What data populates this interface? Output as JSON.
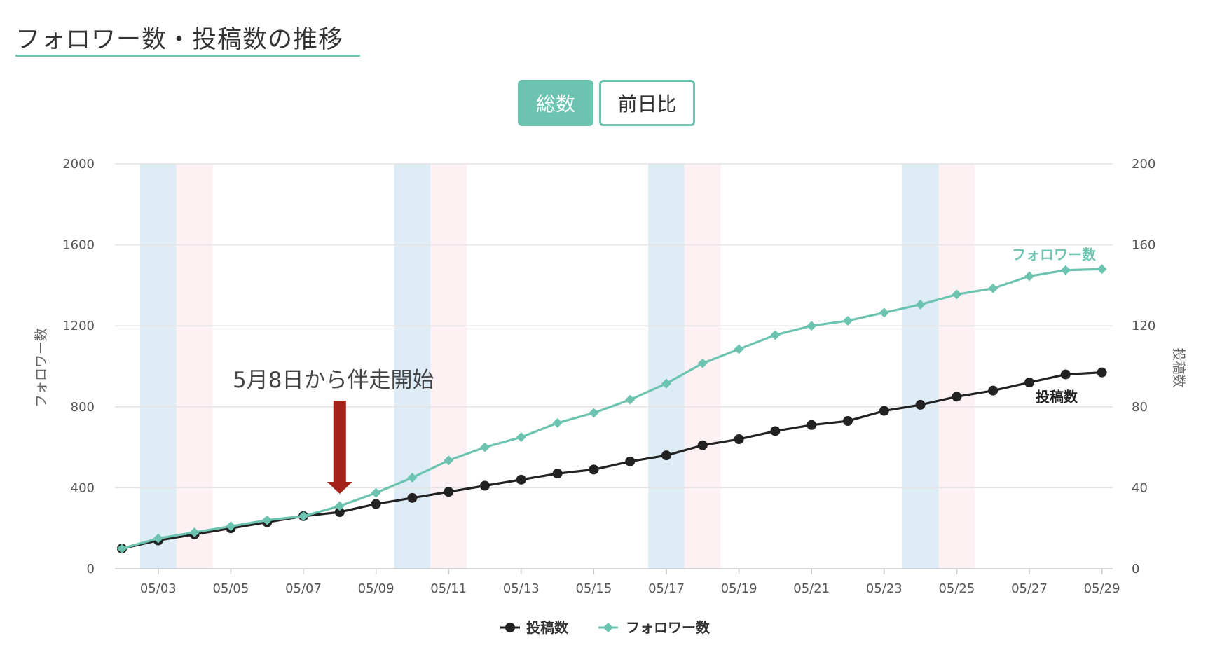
{
  "page_title": "フォロワー数・投稿数の推移",
  "toggle": {
    "total_label": "総数",
    "daily_label": "前日比",
    "active": "total"
  },
  "annotation": {
    "text": "5月8日から伴走開始",
    "date": "05/08"
  },
  "colors": {
    "followers": "#6cc4b0",
    "posts": "#222222",
    "saturday_band": "#deecf5",
    "sunday_band": "#fdf1f3",
    "arrow": "#a42218",
    "accent": "#6cc4b0"
  },
  "chart_data": {
    "type": "line",
    "x": [
      "05/02",
      "05/03",
      "05/04",
      "05/05",
      "05/06",
      "05/07",
      "05/08",
      "05/09",
      "05/10",
      "05/11",
      "05/12",
      "05/13",
      "05/14",
      "05/15",
      "05/16",
      "05/17",
      "05/18",
      "05/19",
      "05/20",
      "05/21",
      "05/22",
      "05/23",
      "05/24",
      "05/25",
      "05/26",
      "05/27",
      "05/28",
      "05/29"
    ],
    "x_tick_labels": [
      "05/03",
      "05/05",
      "05/07",
      "05/09",
      "05/11",
      "05/13",
      "05/15",
      "05/17",
      "05/19",
      "05/21",
      "05/23",
      "05/25",
      "05/27",
      "05/29"
    ],
    "series": [
      {
        "name": "投稿数",
        "axis": "right",
        "marker": "circle",
        "color": "#222222",
        "values": [
          10,
          14,
          17,
          20,
          23,
          26,
          28,
          32,
          35,
          38,
          41,
          44,
          47,
          49,
          53,
          56,
          61,
          64,
          68,
          71,
          73,
          78,
          81,
          85,
          88,
          92,
          96,
          97
        ]
      },
      {
        "name": "フォロワー数",
        "axis": "left",
        "marker": "diamond",
        "color": "#6cc4b0",
        "values": [
          100,
          150,
          180,
          210,
          240,
          260,
          310,
          375,
          450,
          535,
          600,
          650,
          720,
          770,
          835,
          915,
          1015,
          1085,
          1155,
          1200,
          1225,
          1265,
          1305,
          1355,
          1385,
          1445,
          1475,
          1480
        ]
      }
    ],
    "series_end_labels": {
      "posts": "投稿数",
      "followers": "フォロワー数"
    },
    "y_left": {
      "label": "フォロワー数",
      "ylim": [
        0,
        2000
      ],
      "ticks": [
        "0",
        "400",
        "800",
        "1200",
        "1600",
        "2000"
      ]
    },
    "y_right": {
      "label": "投稿数",
      "ylim": [
        0,
        200
      ],
      "ticks": [
        "0",
        "40",
        "80",
        "120",
        "160",
        "200"
      ]
    },
    "weekend_bands": [
      {
        "date": "05/03",
        "day": "saturday"
      },
      {
        "date": "05/04",
        "day": "sunday"
      },
      {
        "date": "05/10",
        "day": "saturday"
      },
      {
        "date": "05/11",
        "day": "sunday"
      },
      {
        "date": "05/17",
        "day": "saturday"
      },
      {
        "date": "05/18",
        "day": "sunday"
      },
      {
        "date": "05/24",
        "day": "saturday"
      },
      {
        "date": "05/25",
        "day": "sunday"
      }
    ],
    "grid": true,
    "legend": {
      "position": "bottom-center",
      "items": [
        "投稿数",
        "フォロワー数"
      ]
    }
  }
}
